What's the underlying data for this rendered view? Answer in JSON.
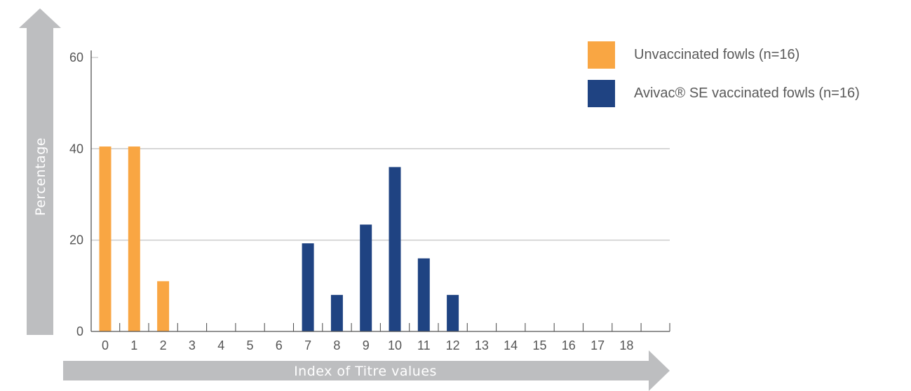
{
  "chart_data": {
    "type": "bar",
    "xlabel": "Index of Titre values",
    "ylabel": "Percentage",
    "ylim": [
      0,
      65
    ],
    "yticks": [
      0,
      20,
      40,
      60
    ],
    "grid": true,
    "legend_position": "top-right",
    "categories": [
      "0",
      "1",
      "2",
      "3",
      "4",
      "5",
      "6",
      "7",
      "8",
      "9",
      "10",
      "11",
      "12",
      "13",
      "14",
      "15",
      "16",
      "17",
      "18"
    ],
    "series": [
      {
        "name": "Unvaccinated fowls (n=16)",
        "color": "#F9A643",
        "values": [
          40.5,
          40.5,
          11,
          0,
          0,
          0,
          0,
          0,
          0,
          0,
          0,
          0,
          0,
          0,
          0,
          0,
          0,
          0,
          0
        ]
      },
      {
        "name": "Avivac® SE vaccinated fowls (n=16)",
        "color": "#1F4382",
        "values": [
          0,
          0,
          0,
          0,
          0,
          0,
          0,
          19.3,
          8,
          23.4,
          36,
          16,
          8,
          0,
          0,
          0,
          0,
          0,
          0
        ]
      }
    ]
  },
  "colors": {
    "axis_arrow": "#BDBEC0",
    "grid": "#C8C8C8",
    "axis": "#555555"
  }
}
